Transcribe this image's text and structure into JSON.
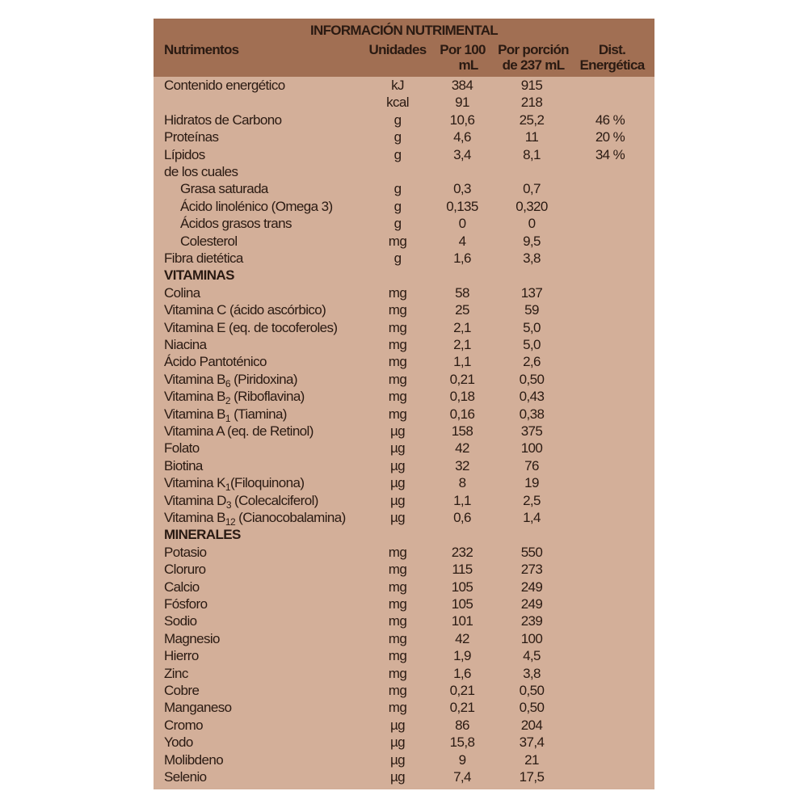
{
  "title": "INFORMACIÓN NUTRIMENTAL",
  "colors": {
    "header_bg": "#a16f53",
    "body_bg": "#d3af99",
    "text": "#2a1a12"
  },
  "columns": {
    "name": "Nutrimentos",
    "units": "Unidades",
    "per100_line1": "Por 100",
    "per100_line2": "mL",
    "portion_line1": "Por porción",
    "portion_line2": "de 237 mL",
    "dist_line1": "Dist.",
    "dist_line2": "Energética"
  },
  "rows": [
    {
      "name": "Contenido energético",
      "unit": "kJ",
      "per100": "384",
      "portion": "915"
    },
    {
      "name": "",
      "unit": "kcal",
      "per100": "91",
      "portion": "218"
    },
    {
      "name": "Hidratos de Carbono",
      "unit": "g",
      "per100": "10,6",
      "portion": "25,2",
      "dist": "46 %"
    },
    {
      "name": "Proteínas",
      "unit": "g",
      "per100": "4,6",
      "portion": "11",
      "dist": "20 %"
    },
    {
      "name": "Lípidos",
      "unit": "g",
      "per100": "3,4",
      "portion": "8,1",
      "dist": "34 %"
    },
    {
      "name": "de los cuales"
    },
    {
      "name": "Grasa saturada",
      "indent": true,
      "unit": "g",
      "per100": "0,3",
      "portion": "0,7"
    },
    {
      "name": "Ácido linolénico (Omega 3)",
      "indent": true,
      "unit": "g",
      "per100": "0,135",
      "portion": "0,320"
    },
    {
      "name": "Ácidos grasos trans",
      "indent": true,
      "unit": "g",
      "per100": "0",
      "portion": "0"
    },
    {
      "name": "Colesterol",
      "indent": true,
      "unit": "mg",
      "per100": "4",
      "portion": "9,5"
    },
    {
      "name": "Fibra dietética",
      "unit": "g",
      "per100": "1,6",
      "portion": "3,8"
    },
    {
      "name": "VITAMINAS",
      "section": true
    },
    {
      "name": "Colina",
      "unit": "mg",
      "per100": "58",
      "portion": "137"
    },
    {
      "name": "Vitamina C (ácido ascórbico)",
      "unit": "mg",
      "per100": "25",
      "portion": "59"
    },
    {
      "name": "Vitamina E (eq. de tocoferoles)",
      "unit": "mg",
      "per100": "2,1",
      "portion": "5,0"
    },
    {
      "name": "Niacina",
      "unit": "mg",
      "per100": "2,1",
      "portion": "5,0"
    },
    {
      "name": "Ácido Pantoténico",
      "unit": "mg",
      "per100": "1,1",
      "portion": "2,6"
    },
    {
      "name": "Vitamina B",
      "sub": "6",
      "post": " (Piridoxina)",
      "unit": "mg",
      "per100": "0,21",
      "portion": "0,50"
    },
    {
      "name": "Vitamina B",
      "sub": "2",
      "post": " (Riboflavina)",
      "unit": "mg",
      "per100": "0,18",
      "portion": "0,43"
    },
    {
      "name": "Vitamina B",
      "sub": "1",
      "post": " (Tiamina)",
      "unit": "mg",
      "per100": "0,16",
      "portion": "0,38"
    },
    {
      "name": "Vitamina A (eq. de Retinol)",
      "unit": "µg",
      "per100": "158",
      "portion": "375"
    },
    {
      "name": "Folato",
      "unit": "µg",
      "per100": "42",
      "portion": "100"
    },
    {
      "name": "Biotina",
      "unit": "µg",
      "per100": "32",
      "portion": "76"
    },
    {
      "name": "Vitamina K",
      "sub": "1",
      "post": "(Filoquinona)",
      "unit": "µg",
      "per100": "8",
      "portion": "19"
    },
    {
      "name": "Vitamina D",
      "sub": "3",
      "post": " (Colecalciferol)",
      "unit": "µg",
      "per100": "1,1",
      "portion": "2,5"
    },
    {
      "name": "Vitamina B",
      "sub": "12",
      "post": " (Cianocobalamina)",
      "unit": "µg",
      "per100": "0,6",
      "portion": "1,4"
    },
    {
      "name": "MINERALES",
      "section": true
    },
    {
      "name": "Potasio",
      "unit": "mg",
      "per100": "232",
      "portion": "550"
    },
    {
      "name": "Cloruro",
      "unit": "mg",
      "per100": "115",
      "portion": "273"
    },
    {
      "name": "Calcio",
      "unit": "mg",
      "per100": "105",
      "portion": "249"
    },
    {
      "name": "Fósforo",
      "unit": "mg",
      "per100": "105",
      "portion": "249"
    },
    {
      "name": "Sodio",
      "unit": "mg",
      "per100": "101",
      "portion": "239"
    },
    {
      "name": "Magnesio",
      "unit": "mg",
      "per100": "42",
      "portion": "100"
    },
    {
      "name": "Hierro",
      "unit": "mg",
      "per100": "1,9",
      "portion": "4,5"
    },
    {
      "name": "Zinc",
      "unit": "mg",
      "per100": "1,6",
      "portion": "3,8"
    },
    {
      "name": "Cobre",
      "unit": "mg",
      "per100": "0,21",
      "portion": "0,50"
    },
    {
      "name": "Manganeso",
      "unit": "mg",
      "per100": "0,21",
      "portion": "0,50"
    },
    {
      "name": "Cromo",
      "unit": "µg",
      "per100": "86",
      "portion": "204"
    },
    {
      "name": "Yodo",
      "unit": "µg",
      "per100": "15,8",
      "portion": "37,4"
    },
    {
      "name": "Molibdeno",
      "unit": "µg",
      "per100": "9",
      "portion": "21"
    },
    {
      "name": "Selenio",
      "unit": "µg",
      "per100": "7,4",
      "portion": "17,5"
    }
  ]
}
